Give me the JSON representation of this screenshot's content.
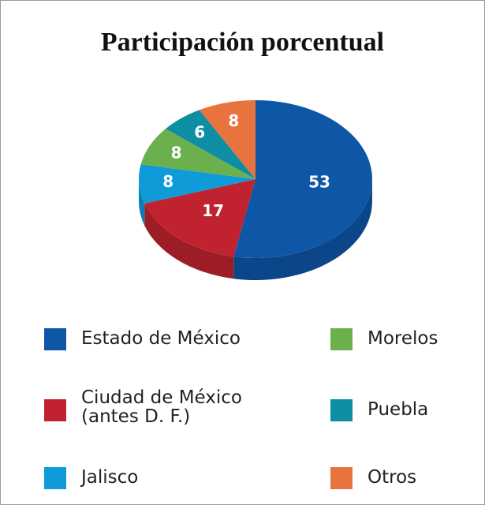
{
  "chart_data": {
    "type": "pie",
    "title": "Participación porcentual",
    "categories": [
      "Estado de México",
      "Ciudad de México\n(antes D. F.)",
      "Jalisco",
      "Morelos",
      "Puebla",
      "Otros"
    ],
    "values": [
      53,
      17,
      8,
      8,
      6,
      8
    ],
    "colors": [
      "#0d57a6",
      "#c0232f",
      "#0f9ad8",
      "#6ab04c",
      "#0d8ea3",
      "#e8733f"
    ]
  }
}
